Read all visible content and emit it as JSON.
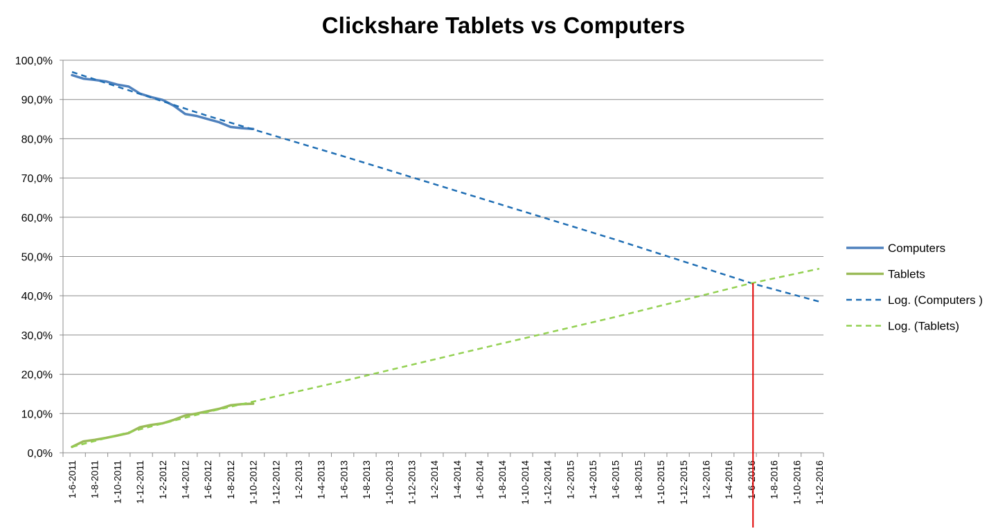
{
  "chart_data": {
    "type": "line",
    "title": "Clickshare Tablets vs Computers",
    "xlabel": "",
    "ylabel": "",
    "ylim": [
      0,
      100
    ],
    "y_ticks": [
      "0,0%",
      "10,0%",
      "20,0%",
      "30,0%",
      "40,0%",
      "50,0%",
      "60,0%",
      "70,0%",
      "80,0%",
      "90,0%",
      "100,0%"
    ],
    "x_ticks": [
      "1-6-2011",
      "1-8-2011",
      "1-10-2011",
      "1-12-2011",
      "1-2-2012",
      "1-4-2012",
      "1-6-2012",
      "1-8-2012",
      "1-10-2012",
      "1-12-2012",
      "1-2-2013",
      "1-4-2013",
      "1-6-2013",
      "1-8-2013",
      "1-10-2013",
      "1-12-2013",
      "1-2-2014",
      "1-4-2014",
      "1-6-2014",
      "1-8-2014",
      "1-10-2014",
      "1-12-2014",
      "1-2-2015",
      "1-4-2015",
      "1-6-2015",
      "1-8-2015",
      "1-10-2015",
      "1-12-2015",
      "1-2-2016",
      "1-4-2016",
      "1-6-2016",
      "1-8-2016",
      "1-10-2016",
      "1-12-2016"
    ],
    "grid": true,
    "legend_position": "right",
    "series": [
      {
        "name": "Computers",
        "style": "solid",
        "color": "#4F81BD",
        "x": [
          "1-6-2011",
          "1-7-2011",
          "1-8-2011",
          "1-9-2011",
          "1-10-2011",
          "1-11-2011",
          "1-12-2011",
          "1-1-2012",
          "1-2-2012",
          "1-3-2012",
          "1-4-2012",
          "1-5-2012",
          "1-6-2012",
          "1-7-2012",
          "1-8-2012",
          "1-9-2012",
          "1-10-2012"
        ],
        "values": [
          96.2,
          95.3,
          95.0,
          94.6,
          93.8,
          93.3,
          91.5,
          90.6,
          89.9,
          88.4,
          86.3,
          85.8,
          85.0,
          84.2,
          83.0,
          82.7,
          82.5
        ]
      },
      {
        "name": "Tablets",
        "style": "solid",
        "color": "#9BBB59",
        "x": [
          "1-6-2011",
          "1-7-2011",
          "1-8-2011",
          "1-9-2011",
          "1-10-2011",
          "1-11-2011",
          "1-12-2011",
          "1-1-2012",
          "1-2-2012",
          "1-3-2012",
          "1-4-2012",
          "1-5-2012",
          "1-6-2012",
          "1-7-2012",
          "1-8-2012",
          "1-9-2012",
          "1-10-2012"
        ],
        "values": [
          1.5,
          2.9,
          3.3,
          3.8,
          4.4,
          5.0,
          6.5,
          7.1,
          7.5,
          8.4,
          9.5,
          10.0,
          10.6,
          11.2,
          12.1,
          12.4,
          12.5
        ]
      },
      {
        "name": "Log. (Computers )",
        "style": "dashed",
        "color": "#1F6EB4",
        "x": [
          "1-6-2011",
          "1-6-2012",
          "1-6-2013",
          "1-6-2014",
          "1-6-2015",
          "1-6-2016",
          "1-12-2016"
        ],
        "values": [
          97.0,
          85.8,
          75.5,
          64.9,
          54.3,
          43.2,
          38.5
        ]
      },
      {
        "name": "Log. (Tablets)",
        "style": "dashed",
        "color": "#92D050",
        "x": [
          "1-6-2011",
          "1-6-2012",
          "1-6-2013",
          "1-6-2014",
          "1-6-2015",
          "1-6-2016",
          "1-12-2016"
        ],
        "values": [
          1.5,
          10.4,
          18.3,
          26.5,
          34.6,
          43.2,
          46.9
        ]
      }
    ],
    "marker_line": {
      "x": "1-7-2016",
      "color": "#E00000"
    }
  }
}
